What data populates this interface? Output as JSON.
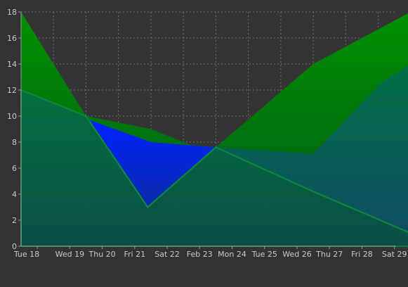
{
  "chart_data": {
    "type": "area",
    "categories": [
      "Tue 18",
      "Wed 19",
      "Thu 20",
      "Fri 21",
      "Sat 22",
      "Feb 23",
      "Mon 24",
      "Tue 25",
      "Wed 26",
      "Thu 27",
      "Fri 28",
      "Sat 29"
    ],
    "ylim": [
      0,
      18
    ],
    "yticks": [
      "0",
      "2",
      "4",
      "6",
      "8",
      "10",
      "12",
      "14",
      "16",
      "18"
    ],
    "grid": true,
    "series": [
      {
        "color": "#008000",
        "points": [
          [
            0,
            18
          ],
          [
            2,
            10
          ],
          [
            4,
            9
          ],
          [
            5.2,
            7.8
          ],
          [
            6,
            7.6
          ],
          [
            9,
            14
          ],
          [
            12,
            18
          ]
        ]
      },
      {
        "color": "#0018dd",
        "points": [
          [
            2,
            9.8
          ],
          [
            4,
            8
          ],
          [
            6,
            7.6
          ],
          [
            3.9,
            3
          ]
        ]
      },
      {
        "color": "#006060",
        "points": [
          [
            0,
            12
          ],
          [
            2,
            10
          ],
          [
            3.9,
            3
          ],
          [
            6,
            7.6
          ],
          [
            9,
            7.1
          ],
          [
            11.1,
            12.6
          ],
          [
            12,
            14
          ]
        ]
      },
      {
        "color": "#00663a",
        "points": [
          [
            0,
            12
          ],
          [
            2,
            10
          ],
          [
            3.9,
            3
          ],
          [
            6,
            7.6
          ],
          [
            9,
            4.2
          ],
          [
            12,
            1
          ]
        ]
      }
    ]
  }
}
